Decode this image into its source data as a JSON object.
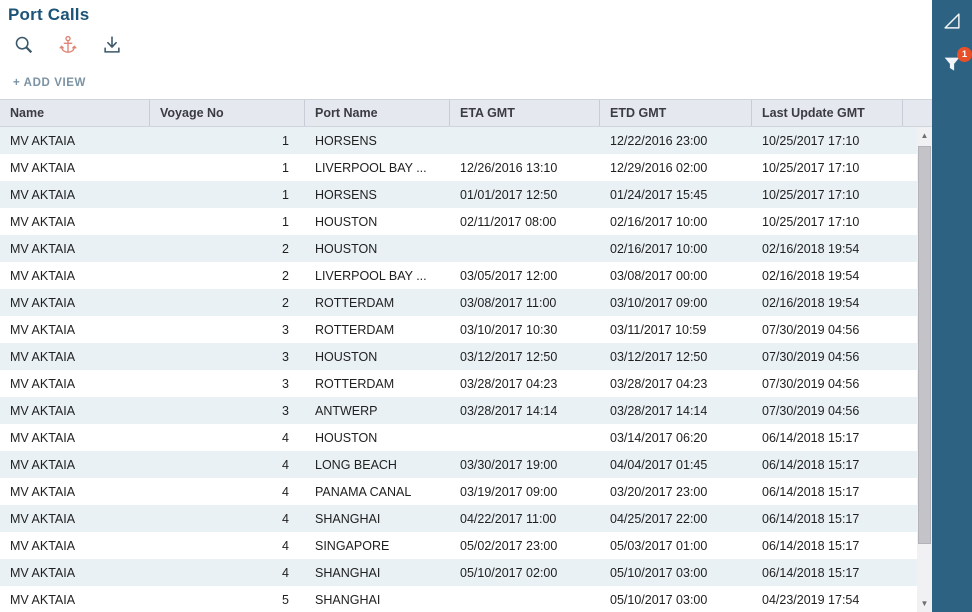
{
  "page": {
    "title": "Port Calls",
    "add_view_label": "+ ADD VIEW"
  },
  "toolbar": {
    "icons": [
      "search-icon",
      "anchor-icon",
      "download-icon"
    ]
  },
  "sidebar": {
    "icons": [
      "triangle-ruler-icon",
      "filter-icon"
    ],
    "filter_badge": "1"
  },
  "colors": {
    "title": "#1c5376",
    "sidebar_bg": "#2e6282",
    "badge_bg": "#e8502a",
    "anchor_icon": "#e08575",
    "dark_icon": "#3a576b",
    "row_alt_bg": "#e9f1f5",
    "header_bg": "#e6e8ef"
  },
  "table": {
    "columns": [
      "Name",
      "Voyage No",
      "Port Name",
      "ETA GMT",
      "ETD GMT",
      "Last Update GMT"
    ],
    "rows": [
      [
        "MV AKTAIA",
        "1",
        "HORSENS",
        "",
        "12/22/2016 23:00",
        "10/25/2017 17:10"
      ],
      [
        "MV AKTAIA",
        "1",
        "LIVERPOOL BAY ...",
        "12/26/2016 13:10",
        "12/29/2016 02:00",
        "10/25/2017 17:10"
      ],
      [
        "MV AKTAIA",
        "1",
        "HORSENS",
        "01/01/2017 12:50",
        "01/24/2017 15:45",
        "10/25/2017 17:10"
      ],
      [
        "MV AKTAIA",
        "1",
        "HOUSTON",
        "02/11/2017 08:00",
        "02/16/2017 10:00",
        "10/25/2017 17:10"
      ],
      [
        "MV AKTAIA",
        "2",
        "HOUSTON",
        "",
        "02/16/2017 10:00",
        "02/16/2018 19:54"
      ],
      [
        "MV AKTAIA",
        "2",
        "LIVERPOOL BAY ...",
        "03/05/2017 12:00",
        "03/08/2017 00:00",
        "02/16/2018 19:54"
      ],
      [
        "MV AKTAIA",
        "2",
        "ROTTERDAM",
        "03/08/2017 11:00",
        "03/10/2017 09:00",
        "02/16/2018 19:54"
      ],
      [
        "MV AKTAIA",
        "3",
        "ROTTERDAM",
        "03/10/2017 10:30",
        "03/11/2017 10:59",
        "07/30/2019 04:56"
      ],
      [
        "MV AKTAIA",
        "3",
        "HOUSTON",
        "03/12/2017 12:50",
        "03/12/2017 12:50",
        "07/30/2019 04:56"
      ],
      [
        "MV AKTAIA",
        "3",
        "ROTTERDAM",
        "03/28/2017 04:23",
        "03/28/2017 04:23",
        "07/30/2019 04:56"
      ],
      [
        "MV AKTAIA",
        "3",
        "ANTWERP",
        "03/28/2017 14:14",
        "03/28/2017 14:14",
        "07/30/2019 04:56"
      ],
      [
        "MV AKTAIA",
        "4",
        "HOUSTON",
        "",
        "03/14/2017 06:20",
        "06/14/2018 15:17"
      ],
      [
        "MV AKTAIA",
        "4",
        "LONG BEACH",
        "03/30/2017 19:00",
        "04/04/2017 01:45",
        "06/14/2018 15:17"
      ],
      [
        "MV AKTAIA",
        "4",
        "PANAMA CANAL",
        "03/19/2017 09:00",
        "03/20/2017 23:00",
        "06/14/2018 15:17"
      ],
      [
        "MV AKTAIA",
        "4",
        "SHANGHAI",
        "04/22/2017 11:00",
        "04/25/2017 22:00",
        "06/14/2018 15:17"
      ],
      [
        "MV AKTAIA",
        "4",
        "SINGAPORE",
        "05/02/2017 23:00",
        "05/03/2017 01:00",
        "06/14/2018 15:17"
      ],
      [
        "MV AKTAIA",
        "4",
        "SHANGHAI",
        "05/10/2017 02:00",
        "05/10/2017 03:00",
        "06/14/2018 15:17"
      ],
      [
        "MV AKTAIA",
        "5",
        "SHANGHAI",
        "",
        "05/10/2017 03:00",
        "04/23/2019 17:54"
      ]
    ]
  },
  "scrollbar": {
    "up_glyph": "▲",
    "down_glyph": "▼"
  }
}
